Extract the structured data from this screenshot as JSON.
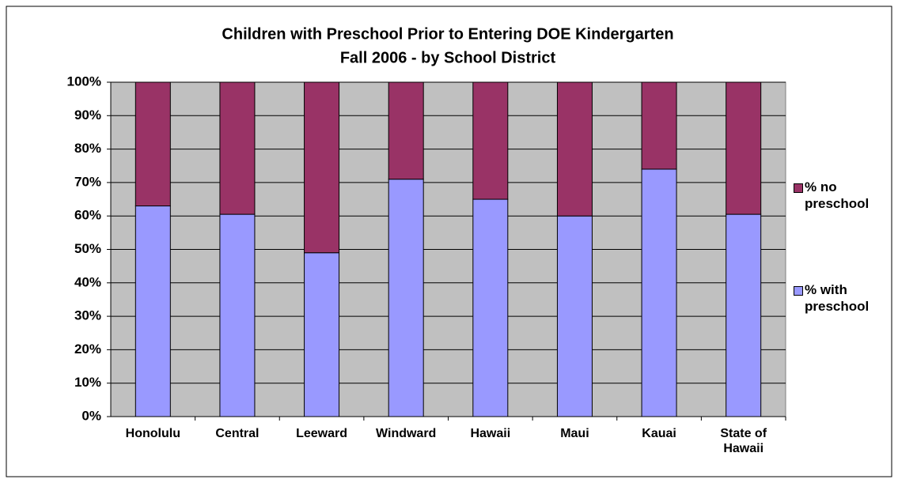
{
  "chart_data": {
    "type": "stacked_bar",
    "title": "Children with Preschool Prior to Entering DOE Kindergarten",
    "subtitle": "Fall 2006 - by School District",
    "categories": [
      "Honolulu",
      "Central",
      "Leeward",
      "Windward",
      "Hawaii",
      "Maui",
      "Kauai",
      "State of Hawaii"
    ],
    "series": [
      {
        "name": "% with preschool",
        "color": "#9999ff",
        "values": [
          63,
          60.5,
          49,
          71,
          65,
          60,
          74,
          60.5
        ]
      },
      {
        "name": "% no preschool",
        "color": "#993366",
        "values": [
          37,
          39.5,
          51,
          29,
          35,
          40,
          26,
          39.5
        ]
      }
    ],
    "ylim": [
      0,
      100
    ],
    "yticks": [
      {
        "value": 0,
        "label": "0%"
      },
      {
        "value": 10,
        "label": "10%"
      },
      {
        "value": 20,
        "label": "20%"
      },
      {
        "value": 30,
        "label": "30%"
      },
      {
        "value": 40,
        "label": "40%"
      },
      {
        "value": 50,
        "label": "50%"
      },
      {
        "value": 60,
        "label": "60%"
      },
      {
        "value": 70,
        "label": "70%"
      },
      {
        "value": 80,
        "label": "80%"
      },
      {
        "value": 90,
        "label": "90%"
      },
      {
        "value": 100,
        "label": "100%"
      }
    ],
    "grid": true,
    "legend": "right"
  }
}
